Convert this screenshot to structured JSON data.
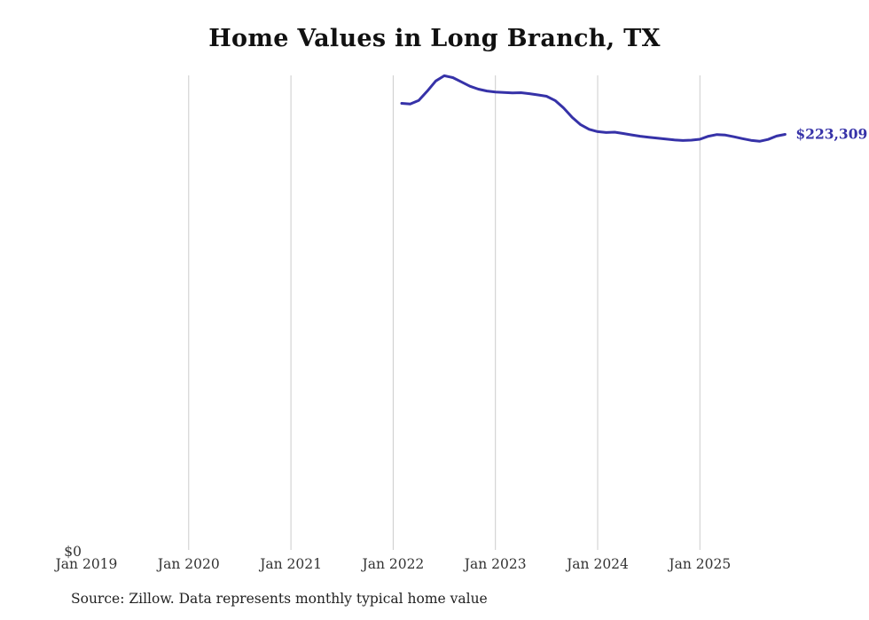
{
  "page": {
    "title": "Home Values in Long Branch, TX",
    "source_note": "Source: Zillow. Data represents monthly typical home value",
    "latest_value_label": "$223,309"
  },
  "colors": {
    "line": "#3632a8",
    "label": "#3632a8",
    "grid": "#cccccc",
    "title": "#111111",
    "tick": "#333333",
    "source": "#222222"
  },
  "chart_data": {
    "type": "line",
    "title": "Home Values in Long Branch, TX",
    "xlabel": "",
    "ylabel": "",
    "ylim": [
      0,
      255000
    ],
    "grid": "vertical-only",
    "legend": "none",
    "y_tick_labels": [
      "$0"
    ],
    "x_ticks": [
      {
        "label": "Jan 2019",
        "year": 2019,
        "grid": false
      },
      {
        "label": "Jan 2020",
        "year": 2020,
        "grid": true
      },
      {
        "label": "Jan 2021",
        "year": 2021,
        "grid": true
      },
      {
        "label": "Jan 2022",
        "year": 2022,
        "grid": true
      },
      {
        "label": "Jan 2023",
        "year": 2023,
        "grid": true
      },
      {
        "label": "Jan 2024",
        "year": 2024,
        "grid": true
      },
      {
        "label": "Jan 2025",
        "year": 2025,
        "grid": true
      }
    ],
    "series": [
      {
        "name": "Monthly typical home value",
        "x": [
          "2022-02",
          "2022-03",
          "2022-04",
          "2022-05",
          "2022-06",
          "2022-07",
          "2022-08",
          "2022-09",
          "2022-10",
          "2022-11",
          "2022-12",
          "2023-01",
          "2023-02",
          "2023-03",
          "2023-04",
          "2023-05",
          "2023-06",
          "2023-07",
          "2023-08",
          "2023-09",
          "2023-10",
          "2023-11",
          "2023-12",
          "2024-01",
          "2024-02",
          "2024-03",
          "2024-04",
          "2024-05",
          "2024-06",
          "2024-07",
          "2024-08",
          "2024-09",
          "2024-10",
          "2024-11",
          "2024-12",
          "2025-01",
          "2025-02",
          "2025-03",
          "2025-04",
          "2025-05",
          "2025-06",
          "2025-07",
          "2025-08",
          "2025-09",
          "2025-10",
          "2025-11"
        ],
        "values": [
          240000,
          239600,
          241500,
          246500,
          252000,
          254800,
          253800,
          251500,
          249200,
          247600,
          246600,
          246100,
          245800,
          245600,
          245700,
          245200,
          244500,
          243800,
          241500,
          237500,
          232500,
          228500,
          226000,
          224800,
          224300,
          224500,
          223800,
          223000,
          222300,
          221800,
          221300,
          220800,
          220300,
          220000,
          220200,
          220700,
          222300,
          223200,
          222900,
          222000,
          221000,
          220100,
          219600,
          220600,
          222400,
          223309
        ]
      }
    ],
    "annotations": [
      {
        "text": "$223,309",
        "attach": "last-point"
      }
    ]
  }
}
